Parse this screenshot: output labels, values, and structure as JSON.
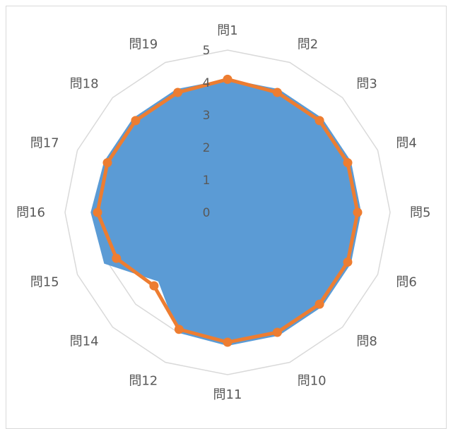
{
  "chart_data": {
    "type": "radar",
    "categories": [
      "問1",
      "問2",
      "問3",
      "問4",
      "問5",
      "問6",
      "問8",
      "問10",
      "問11",
      "問12",
      "問14",
      "問15",
      "問16",
      "問17",
      "問18",
      "問19"
    ],
    "series": [
      {
        "values": [
          4.1,
          4.1,
          4.1,
          4.1,
          4.1,
          4.1,
          4.1,
          4.1,
          4.1,
          4.0,
          3.0,
          4.1,
          4.2,
          4.1,
          4.1,
          4.1
        ],
        "color": "#5b9bd5",
        "style": "filled"
      },
      {
        "values": [
          4.1,
          4.0,
          4.0,
          4.0,
          4.0,
          4.0,
          4.0,
          4.0,
          4.0,
          3.9,
          3.2,
          3.7,
          4.0,
          4.0,
          4.0,
          4.0
        ],
        "color": "#ed7d31",
        "style": "line-markers"
      }
    ],
    "rlim": [
      0,
      5
    ],
    "ticks": [
      "0",
      "1",
      "2",
      "3",
      "4",
      "5"
    ],
    "grid": true,
    "gridColor": "#d9d9d9"
  }
}
